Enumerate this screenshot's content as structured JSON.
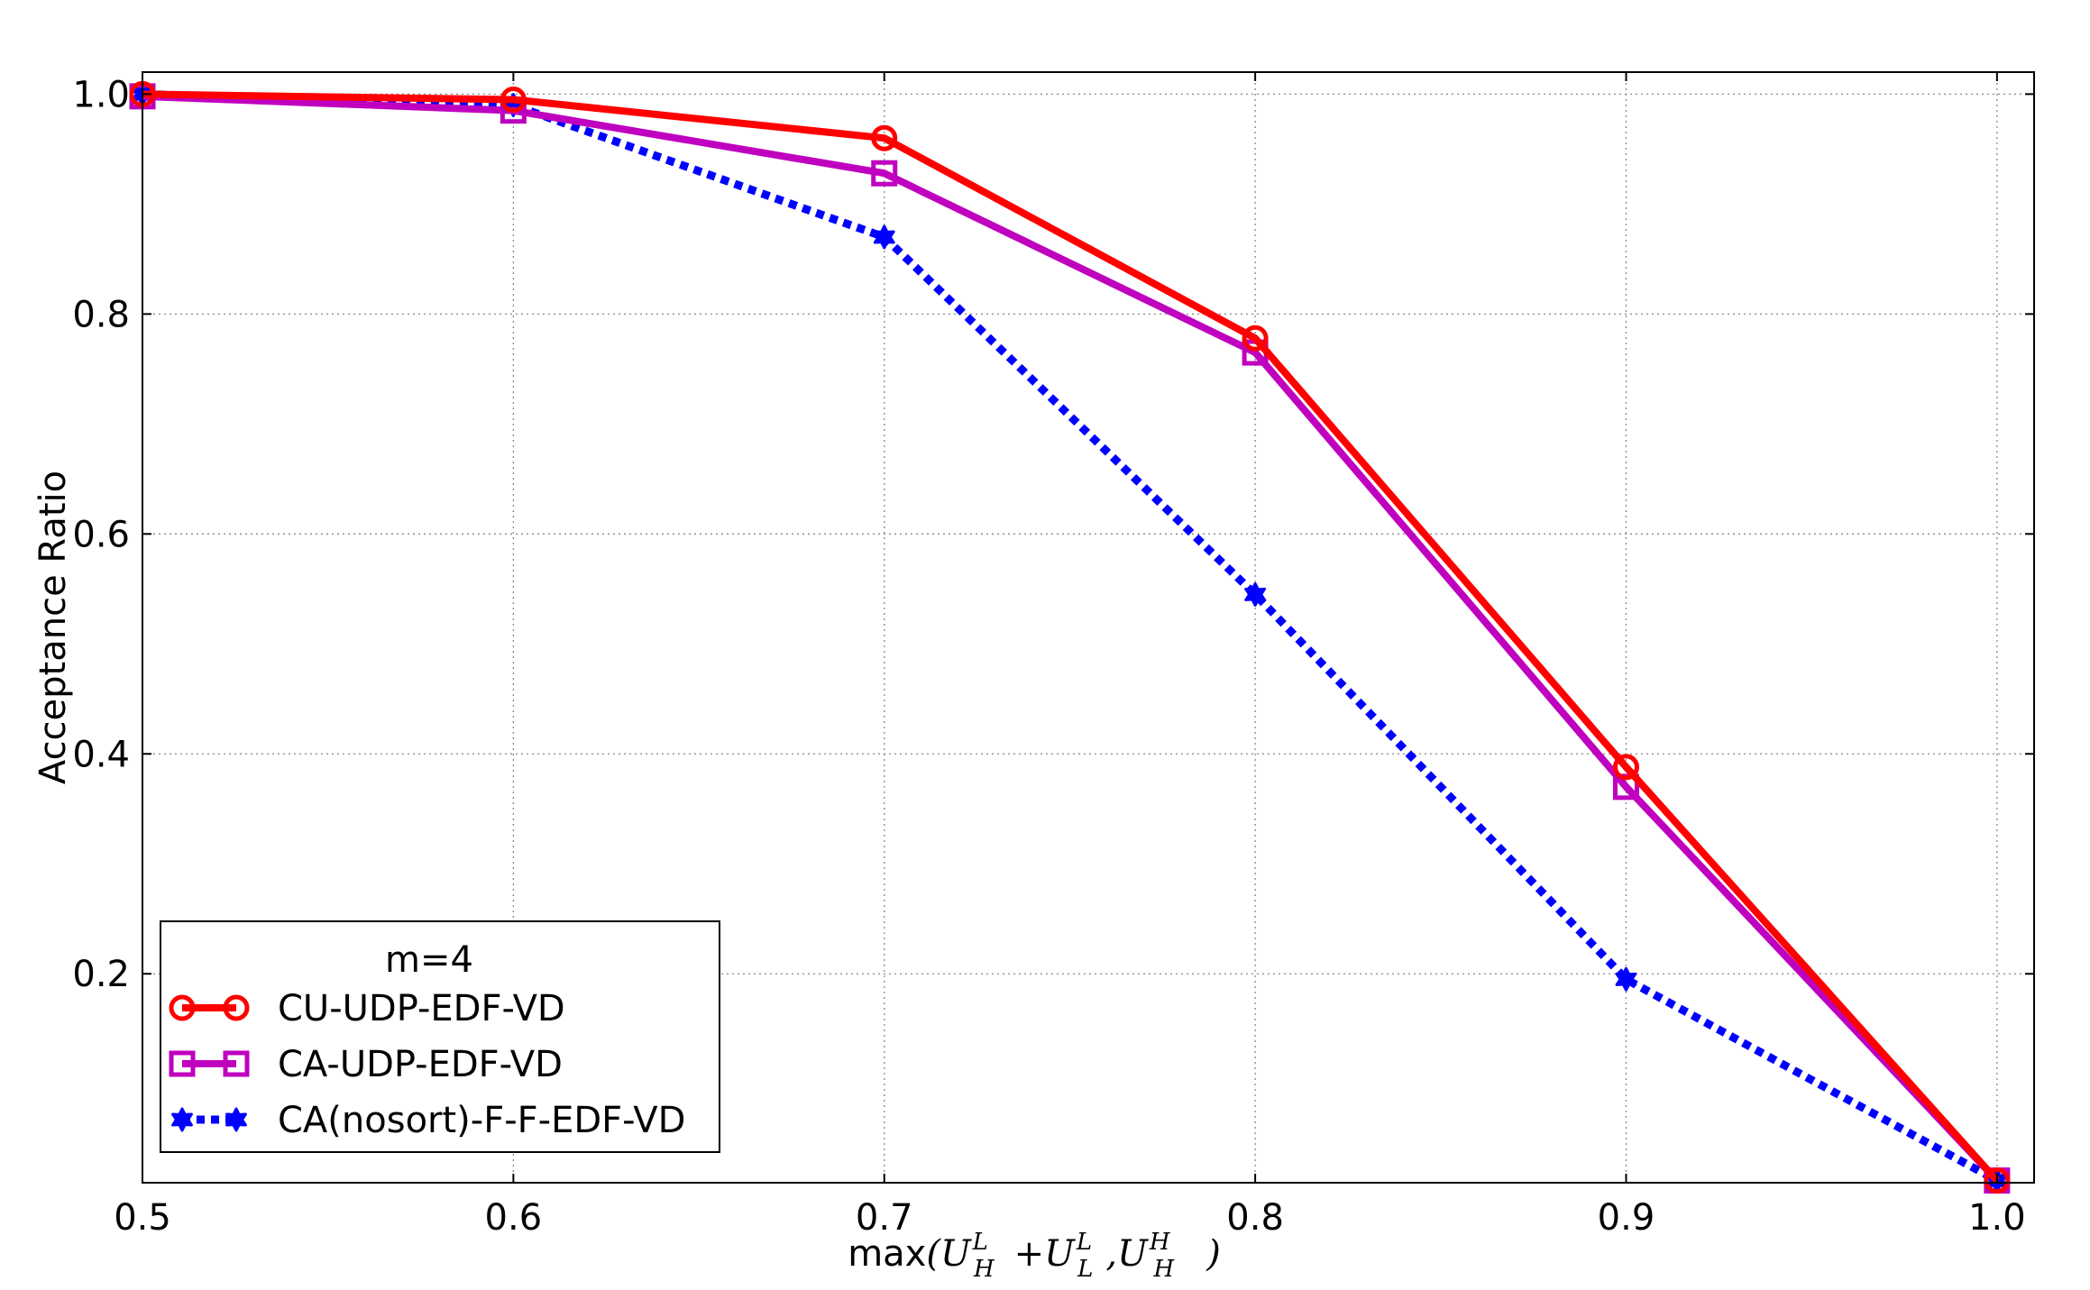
{
  "chart_data": {
    "type": "line",
    "title": "",
    "xlabel": "max(U_H^L + U_L^L, U_H^H)",
    "xlabel_parts": {
      "prefix": "max",
      "open": "(",
      "u1": "U",
      "u1_sub": "H",
      "u1_sup": "L",
      "plus": "+",
      "u2": "U",
      "u2_sub": "L",
      "u2_sup": "L",
      "comma": ",",
      "u3": "U",
      "u3_sub": "H",
      "u3_sup": "H",
      "close": ")"
    },
    "ylabel": "Acceptance Ratio",
    "xlim": [
      0.5,
      1.01
    ],
    "ylim": [
      0.01,
      1.02
    ],
    "grid": true,
    "x_ticks": [
      0.5,
      0.6,
      0.7,
      0.8,
      0.9,
      1.0
    ],
    "x_tick_labels": [
      "0.5",
      "0.6",
      "0.7",
      "0.8",
      "0.9",
      "1.0"
    ],
    "y_ticks": [
      0.2,
      0.4,
      0.6,
      0.8,
      1.0
    ],
    "y_tick_labels": [
      "0.2",
      "0.4",
      "0.6",
      "0.8",
      "1.0"
    ],
    "x": [
      0.5,
      0.6,
      0.7,
      0.8,
      0.9,
      1.0
    ],
    "legend": {
      "title": "m=4",
      "position": "lower-left"
    },
    "series": [
      {
        "name": "CU-UDP-EDF-VD",
        "values": [
          1.0,
          0.995,
          0.96,
          0.778,
          0.388,
          0.012
        ],
        "color": "#ff0000",
        "marker": "circle",
        "line": "solid"
      },
      {
        "name": "CA-UDP-EDF-VD",
        "values": [
          0.998,
          0.985,
          0.928,
          0.765,
          0.37,
          0.012
        ],
        "color": "#bf00bf",
        "marker": "square",
        "line": "solid"
      },
      {
        "name": "CA(nosort)-F-F-EDF-VD",
        "values": [
          1.0,
          0.99,
          0.87,
          0.545,
          0.195,
          0.012
        ],
        "color": "#0000ff",
        "marker": "star",
        "line": "dotted"
      }
    ]
  }
}
